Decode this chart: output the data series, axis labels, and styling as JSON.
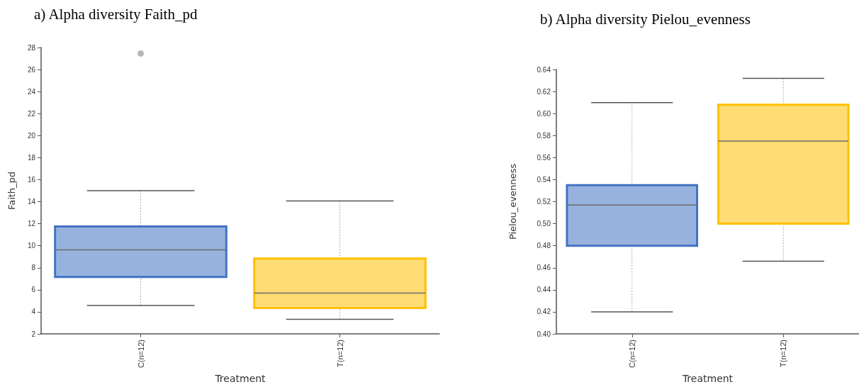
{
  "chart_data": [
    {
      "type": "box",
      "title": "a) Alpha diversity Faith_pd",
      "xlabel": "Treatment",
      "ylabel": "Faith_pd",
      "categories": [
        "C(n=12)",
        "T(n=12)"
      ],
      "colors": [
        "#4472c4",
        "#ffc000"
      ],
      "boxes": [
        {
          "low": 4.57,
          "q1": 7.16,
          "median": 9.63,
          "q3": 11.75,
          "high": 15.0,
          "outliers": [
            27.46
          ]
        },
        {
          "low": 3.33,
          "q1": 4.35,
          "median": 5.7,
          "q3": 8.84,
          "high": 14.07
        }
      ],
      "ylim": [
        2,
        28
      ],
      "yticks": [
        2,
        4,
        6,
        8,
        10,
        12,
        14,
        16,
        18,
        20,
        22,
        24,
        26,
        28
      ],
      "grid": false
    },
    {
      "type": "box",
      "title": "b) Alpha diversity Pielou_evenness",
      "xlabel": "Treatment",
      "ylabel": "Pielou_evenness",
      "categories": [
        "C(n=12)",
        "T(n=12)"
      ],
      "colors": [
        "#4472c4",
        "#ffc000"
      ],
      "boxes": [
        {
          "low": 0.42,
          "q1": 0.48,
          "median": 0.517,
          "q3": 0.535,
          "high": 0.61
        },
        {
          "low": 0.466,
          "q1": 0.5,
          "median": 0.575,
          "q3": 0.608,
          "high": 0.632
        }
      ],
      "ylim": [
        0.4,
        0.64
      ],
      "yticks": [
        {
          "value": 0.4,
          "label": "0.40"
        },
        0.42,
        0.44,
        0.46,
        0.48,
        {
          "value": 0.5,
          "label": "0.50"
        },
        0.52,
        0.54,
        0.56,
        0.58,
        {
          "value": 0.6,
          "label": "0.60"
        },
        0.62,
        0.64
      ],
      "grid": false
    }
  ]
}
